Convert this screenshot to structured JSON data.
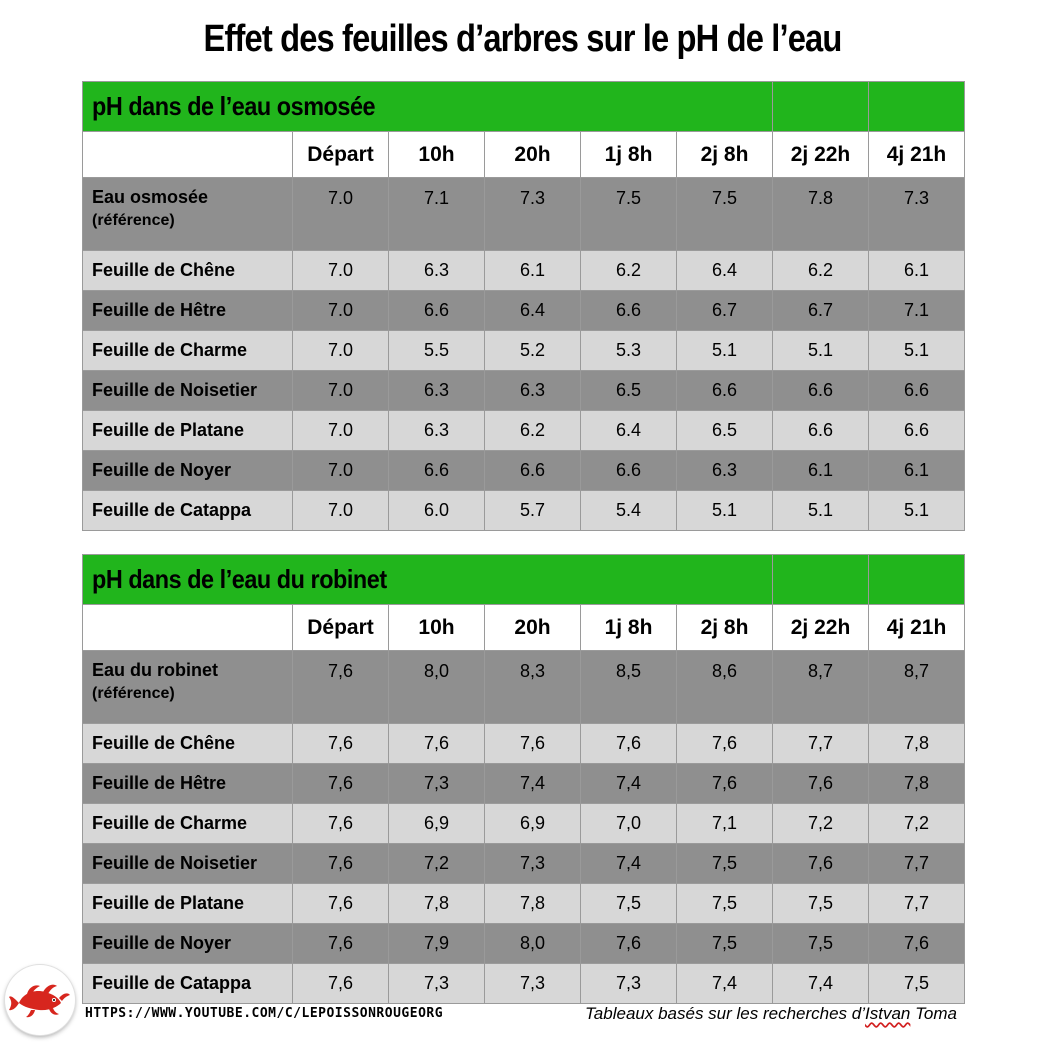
{
  "title": "Effet des feuilles d’arbres sur le pH de l’eau",
  "columns": [
    "Départ",
    "10h",
    "20h",
    "1j 8h",
    "2j 8h",
    "2j 22h",
    "4j 21h"
  ],
  "tables": [
    {
      "section_title": "pH dans de l’eau osmosée",
      "reference": {
        "label": "Eau osmosée",
        "sublabel": "(référence)",
        "values": [
          "7.0",
          "7.1",
          "7.3",
          "7.5",
          "7.5",
          "7.8",
          "7.3"
        ]
      },
      "rows": [
        {
          "label": "Feuille de Chêne",
          "values": [
            "7.0",
            "6.3",
            "6.1",
            "6.2",
            "6.4",
            "6.2",
            "6.1"
          ]
        },
        {
          "label": "Feuille de Hêtre",
          "values": [
            "7.0",
            "6.6",
            "6.4",
            "6.6",
            "6.7",
            "6.7",
            "7.1"
          ]
        },
        {
          "label": "Feuille de Charme",
          "values": [
            "7.0",
            "5.5",
            "5.2",
            "5.3",
            "5.1",
            "5.1",
            "5.1"
          ]
        },
        {
          "label": "Feuille de Noisetier",
          "values": [
            "7.0",
            "6.3",
            "6.3",
            "6.5",
            "6.6",
            "6.6",
            "6.6"
          ]
        },
        {
          "label": "Feuille de Platane",
          "values": [
            "7.0",
            "6.3",
            "6.2",
            "6.4",
            "6.5",
            "6.6",
            "6.6"
          ]
        },
        {
          "label": "Feuille de Noyer",
          "values": [
            "7.0",
            "6.6",
            "6.6",
            "6.6",
            "6.3",
            "6.1",
            "6.1"
          ]
        },
        {
          "label": "Feuille de Catappa",
          "values": [
            "7.0",
            "6.0",
            "5.7",
            "5.4",
            "5.1",
            "5.1",
            "5.1"
          ]
        }
      ]
    },
    {
      "section_title": "pH dans de l’eau du robinet",
      "reference": {
        "label": "Eau du robinet",
        "sublabel": "(référence)",
        "values": [
          "7,6",
          "8,0",
          "8,3",
          "8,5",
          "8,6",
          "8,7",
          "8,7"
        ]
      },
      "rows": [
        {
          "label": "Feuille de Chêne",
          "values": [
            "7,6",
            "7,6",
            "7,6",
            "7,6",
            "7,6",
            "7,7",
            "7,8"
          ]
        },
        {
          "label": "Feuille de Hêtre",
          "values": [
            "7,6",
            "7,3",
            "7,4",
            "7,4",
            "7,6",
            "7,6",
            "7,8"
          ]
        },
        {
          "label": "Feuille de Charme",
          "values": [
            "7,6",
            "6,9",
            "6,9",
            "7,0",
            "7,1",
            "7,2",
            "7,2"
          ]
        },
        {
          "label": "Feuille de Noisetier",
          "values": [
            "7,6",
            "7,2",
            "7,3",
            "7,4",
            "7,5",
            "7,6",
            "7,7"
          ]
        },
        {
          "label": "Feuille de Platane",
          "values": [
            "7,6",
            "7,8",
            "7,8",
            "7,5",
            "7,5",
            "7,5",
            "7,7"
          ]
        },
        {
          "label": "Feuille de Noyer",
          "values": [
            "7,6",
            "7,9",
            "8,0",
            "7,6",
            "7,5",
            "7,5",
            "7,6"
          ]
        },
        {
          "label": "Feuille de Catappa",
          "values": [
            "7,6",
            "7,3",
            "7,3",
            "7,3",
            "7,4",
            "7,4",
            "7,5"
          ]
        }
      ]
    }
  ],
  "footer": {
    "url": "HTTPS://WWW.YOUTUBE.COM/C/LEPOISSONROUGEORG",
    "credit_prefix": "Tableaux basés sur les recherches d’",
    "credit_name_first": "Istvan",
    "credit_name_last": " Toma"
  },
  "logo": {
    "icon": "red-fish-logo-icon",
    "color": "#d7261e"
  }
}
